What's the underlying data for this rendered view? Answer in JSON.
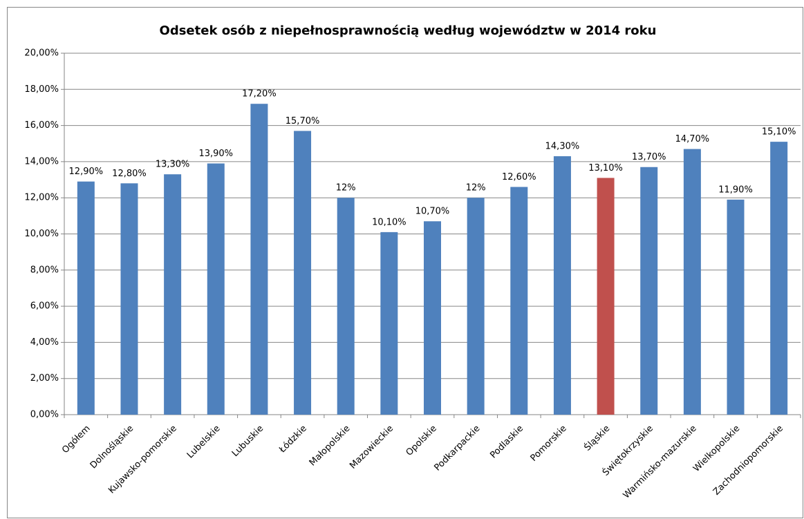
{
  "chart_data": {
    "type": "bar",
    "title": "Odsetek osób z niepełnosprawnością według województw w 2014 roku",
    "categories": [
      "Ogółem",
      "Dolnośląskie",
      "Kujawsko-pomorskie",
      "Lubelskie",
      "Lubuskie",
      "Łódzkie",
      "Małopolskie",
      "Mazowieckie",
      "Opolskie",
      "Podkarpackie",
      "Podlaskie",
      "Pomorskie",
      "Śląskie",
      "Świętokrzyskie",
      "Warmińsko-mazurskie",
      "Wielkopolskie",
      "Zachodniopomorskie"
    ],
    "values": [
      12.9,
      12.8,
      13.3,
      13.9,
      17.2,
      15.7,
      12,
      10.1,
      10.7,
      12,
      12.6,
      14.3,
      13.1,
      13.7,
      14.7,
      11.9,
      15.1
    ],
    "value_labels": [
      "12,90%",
      "12,80%",
      "13,30%",
      "13,90%",
      "17,20%",
      "15,70%",
      "12%",
      "10,10%",
      "10,70%",
      "12%",
      "12,60%",
      "14,30%",
      "13,10%",
      "13,70%",
      "14,70%",
      "11,90%",
      "15,10%"
    ],
    "colors": [
      "#4f81bd",
      "#4f81bd",
      "#4f81bd",
      "#4f81bd",
      "#4f81bd",
      "#4f81bd",
      "#4f81bd",
      "#4f81bd",
      "#4f81bd",
      "#4f81bd",
      "#4f81bd",
      "#4f81bd",
      "#c0504d",
      "#4f81bd",
      "#4f81bd",
      "#4f81bd",
      "#4f81bd"
    ],
    "ylim": [
      0,
      20
    ],
    "yticks": [
      {
        "value": 0,
        "label": "0,00%"
      },
      {
        "value": 2,
        "label": "2,00%"
      },
      {
        "value": 4,
        "label": "4,00%"
      },
      {
        "value": 6,
        "label": "6,00%"
      },
      {
        "value": 8,
        "label": "8,00%"
      },
      {
        "value": 10,
        "label": "10,00%"
      },
      {
        "value": 12,
        "label": "12,00%"
      },
      {
        "value": 14,
        "label": "14,00%"
      },
      {
        "value": 16,
        "label": "16,00%"
      },
      {
        "value": 18,
        "label": "18,00%"
      },
      {
        "value": 20,
        "label": "20,00%"
      }
    ],
    "grid": true
  }
}
